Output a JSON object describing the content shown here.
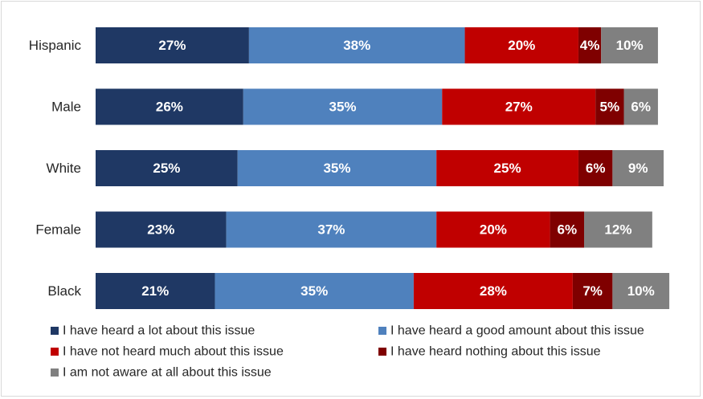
{
  "chart_data": {
    "type": "bar",
    "orientation": "horizontal",
    "stacked": true,
    "title": "",
    "xlabel": "",
    "ylabel": "",
    "xlim": [
      0,
      100
    ],
    "grid": false,
    "legend_position": "bottom",
    "categories": [
      "Hispanic",
      "Male",
      "White",
      "Female",
      "Black"
    ],
    "series": [
      {
        "name": "I have heard a lot about this issue",
        "color": "#1f3864",
        "values": [
          27,
          26,
          25,
          23,
          21
        ]
      },
      {
        "name": "I have heard a good amount about this issue",
        "color": "#4f81bd",
        "values": [
          38,
          35,
          35,
          37,
          35
        ]
      },
      {
        "name": "I have not heard much about this issue",
        "color": "#c00000",
        "values": [
          20,
          27,
          25,
          20,
          28
        ]
      },
      {
        "name": "I have heard nothing about this issue",
        "color": "#7f0000",
        "values": [
          4,
          5,
          6,
          6,
          7
        ]
      },
      {
        "name": "I am not aware at all about this issue",
        "color": "#808080",
        "values": [
          10,
          6,
          9,
          12,
          10
        ]
      }
    ]
  }
}
